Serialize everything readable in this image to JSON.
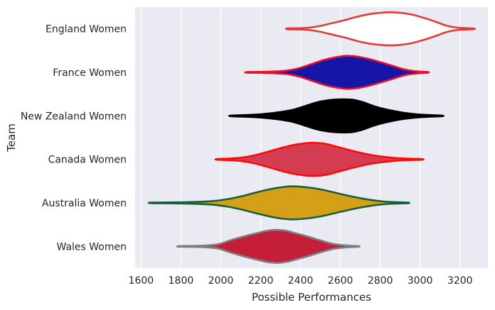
{
  "chart_data": {
    "type": "violin",
    "orientation": "horizontal",
    "xlabel": "Possible Performances",
    "ylabel": "Team",
    "xlim": [
      1570,
      3340
    ],
    "xticks": [
      1600,
      1800,
      2000,
      2200,
      2400,
      2600,
      2800,
      3000,
      3200
    ],
    "grid": true,
    "background": "#EAEAF2",
    "grid_color": "#FFFFFF",
    "categories": [
      "England Women",
      "France Women",
      "New Zealand Women",
      "Canada Women",
      "Australia Women",
      "Wales Women"
    ],
    "series": [
      {
        "category": "England Women",
        "fill": "#FFFFFF",
        "stroke": "#E03C3C",
        "min": 2335,
        "max": 3270,
        "profile": [
          [
            2335,
            0.03
          ],
          [
            2400,
            0.04
          ],
          [
            2450,
            0.08
          ],
          [
            2500,
            0.18
          ],
          [
            2560,
            0.35
          ],
          [
            2620,
            0.52
          ],
          [
            2680,
            0.72
          ],
          [
            2740,
            0.88
          ],
          [
            2800,
            0.97
          ],
          [
            2850,
            1.0
          ],
          [
            2900,
            0.97
          ],
          [
            2960,
            0.86
          ],
          [
            3020,
            0.66
          ],
          [
            3080,
            0.42
          ],
          [
            3130,
            0.2
          ],
          [
            3180,
            0.08
          ],
          [
            3230,
            0.04
          ],
          [
            3270,
            0.02
          ]
        ]
      },
      {
        "category": "France Women",
        "fill": "#1515A8",
        "stroke": "#E8102A",
        "min": 2130,
        "max": 3040,
        "profile": [
          [
            2130,
            0.02
          ],
          [
            2200,
            0.03
          ],
          [
            2280,
            0.06
          ],
          [
            2340,
            0.12
          ],
          [
            2400,
            0.28
          ],
          [
            2460,
            0.52
          ],
          [
            2520,
            0.76
          ],
          [
            2580,
            0.92
          ],
          [
            2630,
            1.0
          ],
          [
            2680,
            0.96
          ],
          [
            2740,
            0.82
          ],
          [
            2800,
            0.62
          ],
          [
            2860,
            0.4
          ],
          [
            2920,
            0.18
          ],
          [
            2970,
            0.08
          ],
          [
            3010,
            0.04
          ],
          [
            3040,
            0.02
          ]
        ]
      },
      {
        "category": "New Zealand Women",
        "fill": "#000000",
        "stroke": "#000000",
        "min": 2050,
        "max": 3110,
        "profile": [
          [
            2050,
            0.02
          ],
          [
            2120,
            0.05
          ],
          [
            2200,
            0.1
          ],
          [
            2280,
            0.2
          ],
          [
            2360,
            0.36
          ],
          [
            2430,
            0.62
          ],
          [
            2490,
            0.84
          ],
          [
            2550,
            0.96
          ],
          [
            2600,
            1.0
          ],
          [
            2660,
            0.98
          ],
          [
            2710,
            0.84
          ],
          [
            2770,
            0.58
          ],
          [
            2840,
            0.36
          ],
          [
            2910,
            0.2
          ],
          [
            2980,
            0.1
          ],
          [
            3050,
            0.05
          ],
          [
            3110,
            0.02
          ]
        ]
      },
      {
        "category": "Canada Women",
        "fill": "#D43D51",
        "stroke": "#FF0A0A",
        "min": 1980,
        "max": 3010,
        "profile": [
          [
            1980,
            0.02
          ],
          [
            2040,
            0.05
          ],
          [
            2100,
            0.1
          ],
          [
            2160,
            0.22
          ],
          [
            2230,
            0.44
          ],
          [
            2300,
            0.68
          ],
          [
            2360,
            0.86
          ],
          [
            2420,
            0.97
          ],
          [
            2470,
            1.0
          ],
          [
            2530,
            0.93
          ],
          [
            2590,
            0.74
          ],
          [
            2660,
            0.52
          ],
          [
            2730,
            0.32
          ],
          [
            2800,
            0.18
          ],
          [
            2880,
            0.08
          ],
          [
            2950,
            0.04
          ],
          [
            3010,
            0.02
          ]
        ]
      },
      {
        "category": "Australia Women",
        "fill": "#D4A017",
        "stroke": "#1B5E3B",
        "min": 1650,
        "max": 2940,
        "profile": [
          [
            1650,
            0.02
          ],
          [
            1750,
            0.03
          ],
          [
            1850,
            0.05
          ],
          [
            1950,
            0.1
          ],
          [
            2030,
            0.22
          ],
          [
            2110,
            0.42
          ],
          [
            2180,
            0.64
          ],
          [
            2260,
            0.86
          ],
          [
            2320,
            0.97
          ],
          [
            2360,
            1.0
          ],
          [
            2420,
            0.96
          ],
          [
            2500,
            0.82
          ],
          [
            2580,
            0.6
          ],
          [
            2660,
            0.38
          ],
          [
            2740,
            0.2
          ],
          [
            2820,
            0.08
          ],
          [
            2890,
            0.04
          ],
          [
            2940,
            0.02
          ]
        ]
      },
      {
        "category": "Wales Women",
        "fill": "#C41E3A",
        "stroke": "#808080",
        "min": 1790,
        "max": 2690,
        "profile": [
          [
            1790,
            0.02
          ],
          [
            1870,
            0.03
          ],
          [
            1930,
            0.06
          ],
          [
            1990,
            0.14
          ],
          [
            2050,
            0.38
          ],
          [
            2120,
            0.62
          ],
          [
            2180,
            0.8
          ],
          [
            2230,
            0.94
          ],
          [
            2280,
            1.0
          ],
          [
            2330,
            0.94
          ],
          [
            2380,
            0.78
          ],
          [
            2430,
            0.62
          ],
          [
            2490,
            0.4
          ],
          [
            2560,
            0.16
          ],
          [
            2630,
            0.06
          ],
          [
            2690,
            0.02
          ]
        ]
      }
    ]
  }
}
